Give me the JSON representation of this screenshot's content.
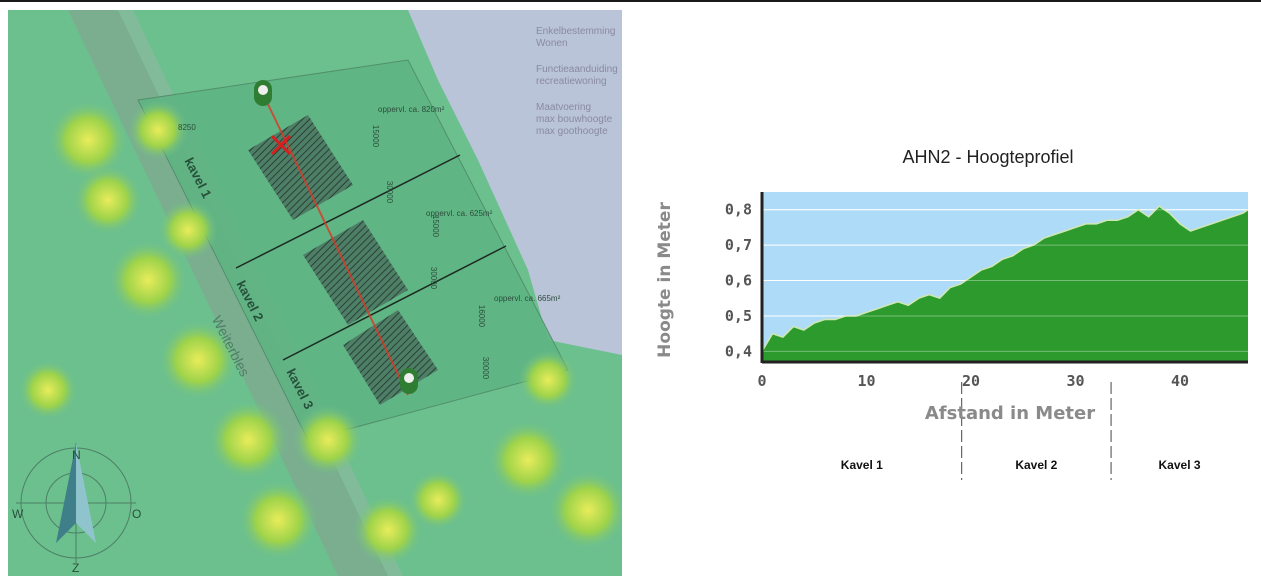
{
  "map": {
    "legend_lines": [
      "Enkelbestemming",
      "Wonen",
      "Functieaanduiding",
      "recreatiewoning",
      "Maatvoering",
      "max bouwhoogte",
      "max goothoogte"
    ],
    "plot_labels": [
      "kavel 1",
      "kavel 2",
      "kavel 3"
    ],
    "street_name": "Weiterbles",
    "area_labels": [
      "oppervl. ca. 820m²",
      "oppervl. ca. 625m²",
      "oppervl. ca. 665m²"
    ],
    "dimension_labels": [
      "8250",
      "15000",
      "30000",
      "15000",
      "30000",
      "16000",
      "30000"
    ],
    "compass": {
      "n": "N",
      "o": "O",
      "w": "W",
      "z": "Z"
    },
    "colors": {
      "overlay": "#6cc08e",
      "water": "#b9c4d8",
      "profile_line": "#d83a2a",
      "marker": "#2e7d32"
    }
  },
  "chart_data": {
    "type": "area",
    "title": "AHN2 - Hoogteprofiel",
    "xlabel": "Afstand in Meter",
    "ylabel": "Hoogte in Meter",
    "xlim": [
      0,
      46.5
    ],
    "ylim": [
      0.37,
      0.85
    ],
    "xticks": [
      0,
      10,
      20,
      30,
      40
    ],
    "yticks": [
      0.4,
      0.5,
      0.6,
      0.7,
      0.8
    ],
    "xtick_labels": [
      "0",
      "10",
      "20",
      "30",
      "40"
    ],
    "ytick_labels": [
      "0,4",
      "0,5",
      "0,6",
      "0,7",
      "0,8"
    ],
    "grid": true,
    "colors": {
      "fill": "#2d9a2d",
      "line": "#cfe8b0",
      "background": "#aedcf8"
    },
    "x": [
      0,
      1,
      2,
      3,
      4,
      5,
      6,
      7,
      8,
      9,
      10,
      11,
      12,
      13,
      14,
      15,
      16,
      17,
      18,
      19,
      20,
      21,
      22,
      23,
      24,
      25,
      26,
      27,
      28,
      29,
      30,
      31,
      32,
      33,
      34,
      35,
      36,
      37,
      38,
      39,
      40,
      41,
      42,
      43,
      44,
      45,
      46,
      46.5
    ],
    "values": [
      0.4,
      0.45,
      0.44,
      0.47,
      0.46,
      0.48,
      0.49,
      0.49,
      0.5,
      0.5,
      0.51,
      0.52,
      0.53,
      0.54,
      0.53,
      0.55,
      0.56,
      0.55,
      0.58,
      0.59,
      0.61,
      0.63,
      0.64,
      0.66,
      0.67,
      0.69,
      0.7,
      0.72,
      0.73,
      0.74,
      0.75,
      0.76,
      0.76,
      0.77,
      0.77,
      0.78,
      0.8,
      0.78,
      0.81,
      0.79,
      0.76,
      0.74,
      0.75,
      0.76,
      0.77,
      0.78,
      0.79,
      0.8
    ],
    "sections": [
      {
        "label": "Kavel 1",
        "start": 0,
        "end": 19.1
      },
      {
        "label": "Kavel 2",
        "start": 19.1,
        "end": 33.4
      },
      {
        "label": "Kavel 3",
        "start": 33.4,
        "end": 46.5
      }
    ]
  }
}
